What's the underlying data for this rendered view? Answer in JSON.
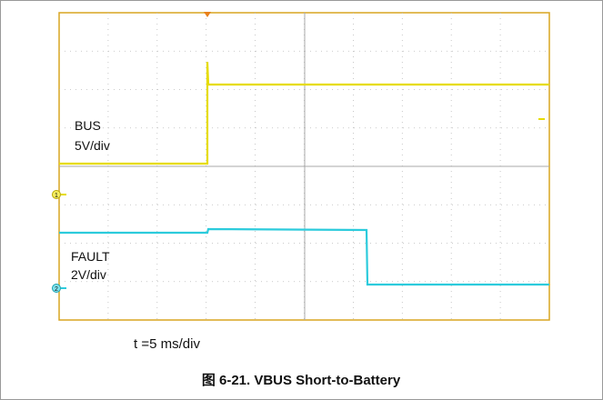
{
  "scope": {
    "channel1": {
      "name": "BUS",
      "scale": "5V/div",
      "marker": "1"
    },
    "channel2": {
      "name": "FAULT",
      "scale": "2V/div",
      "marker": "2"
    },
    "timebase": "t =5 ms/div"
  },
  "caption": "图 6-21. VBUS Short-to-Battery"
}
